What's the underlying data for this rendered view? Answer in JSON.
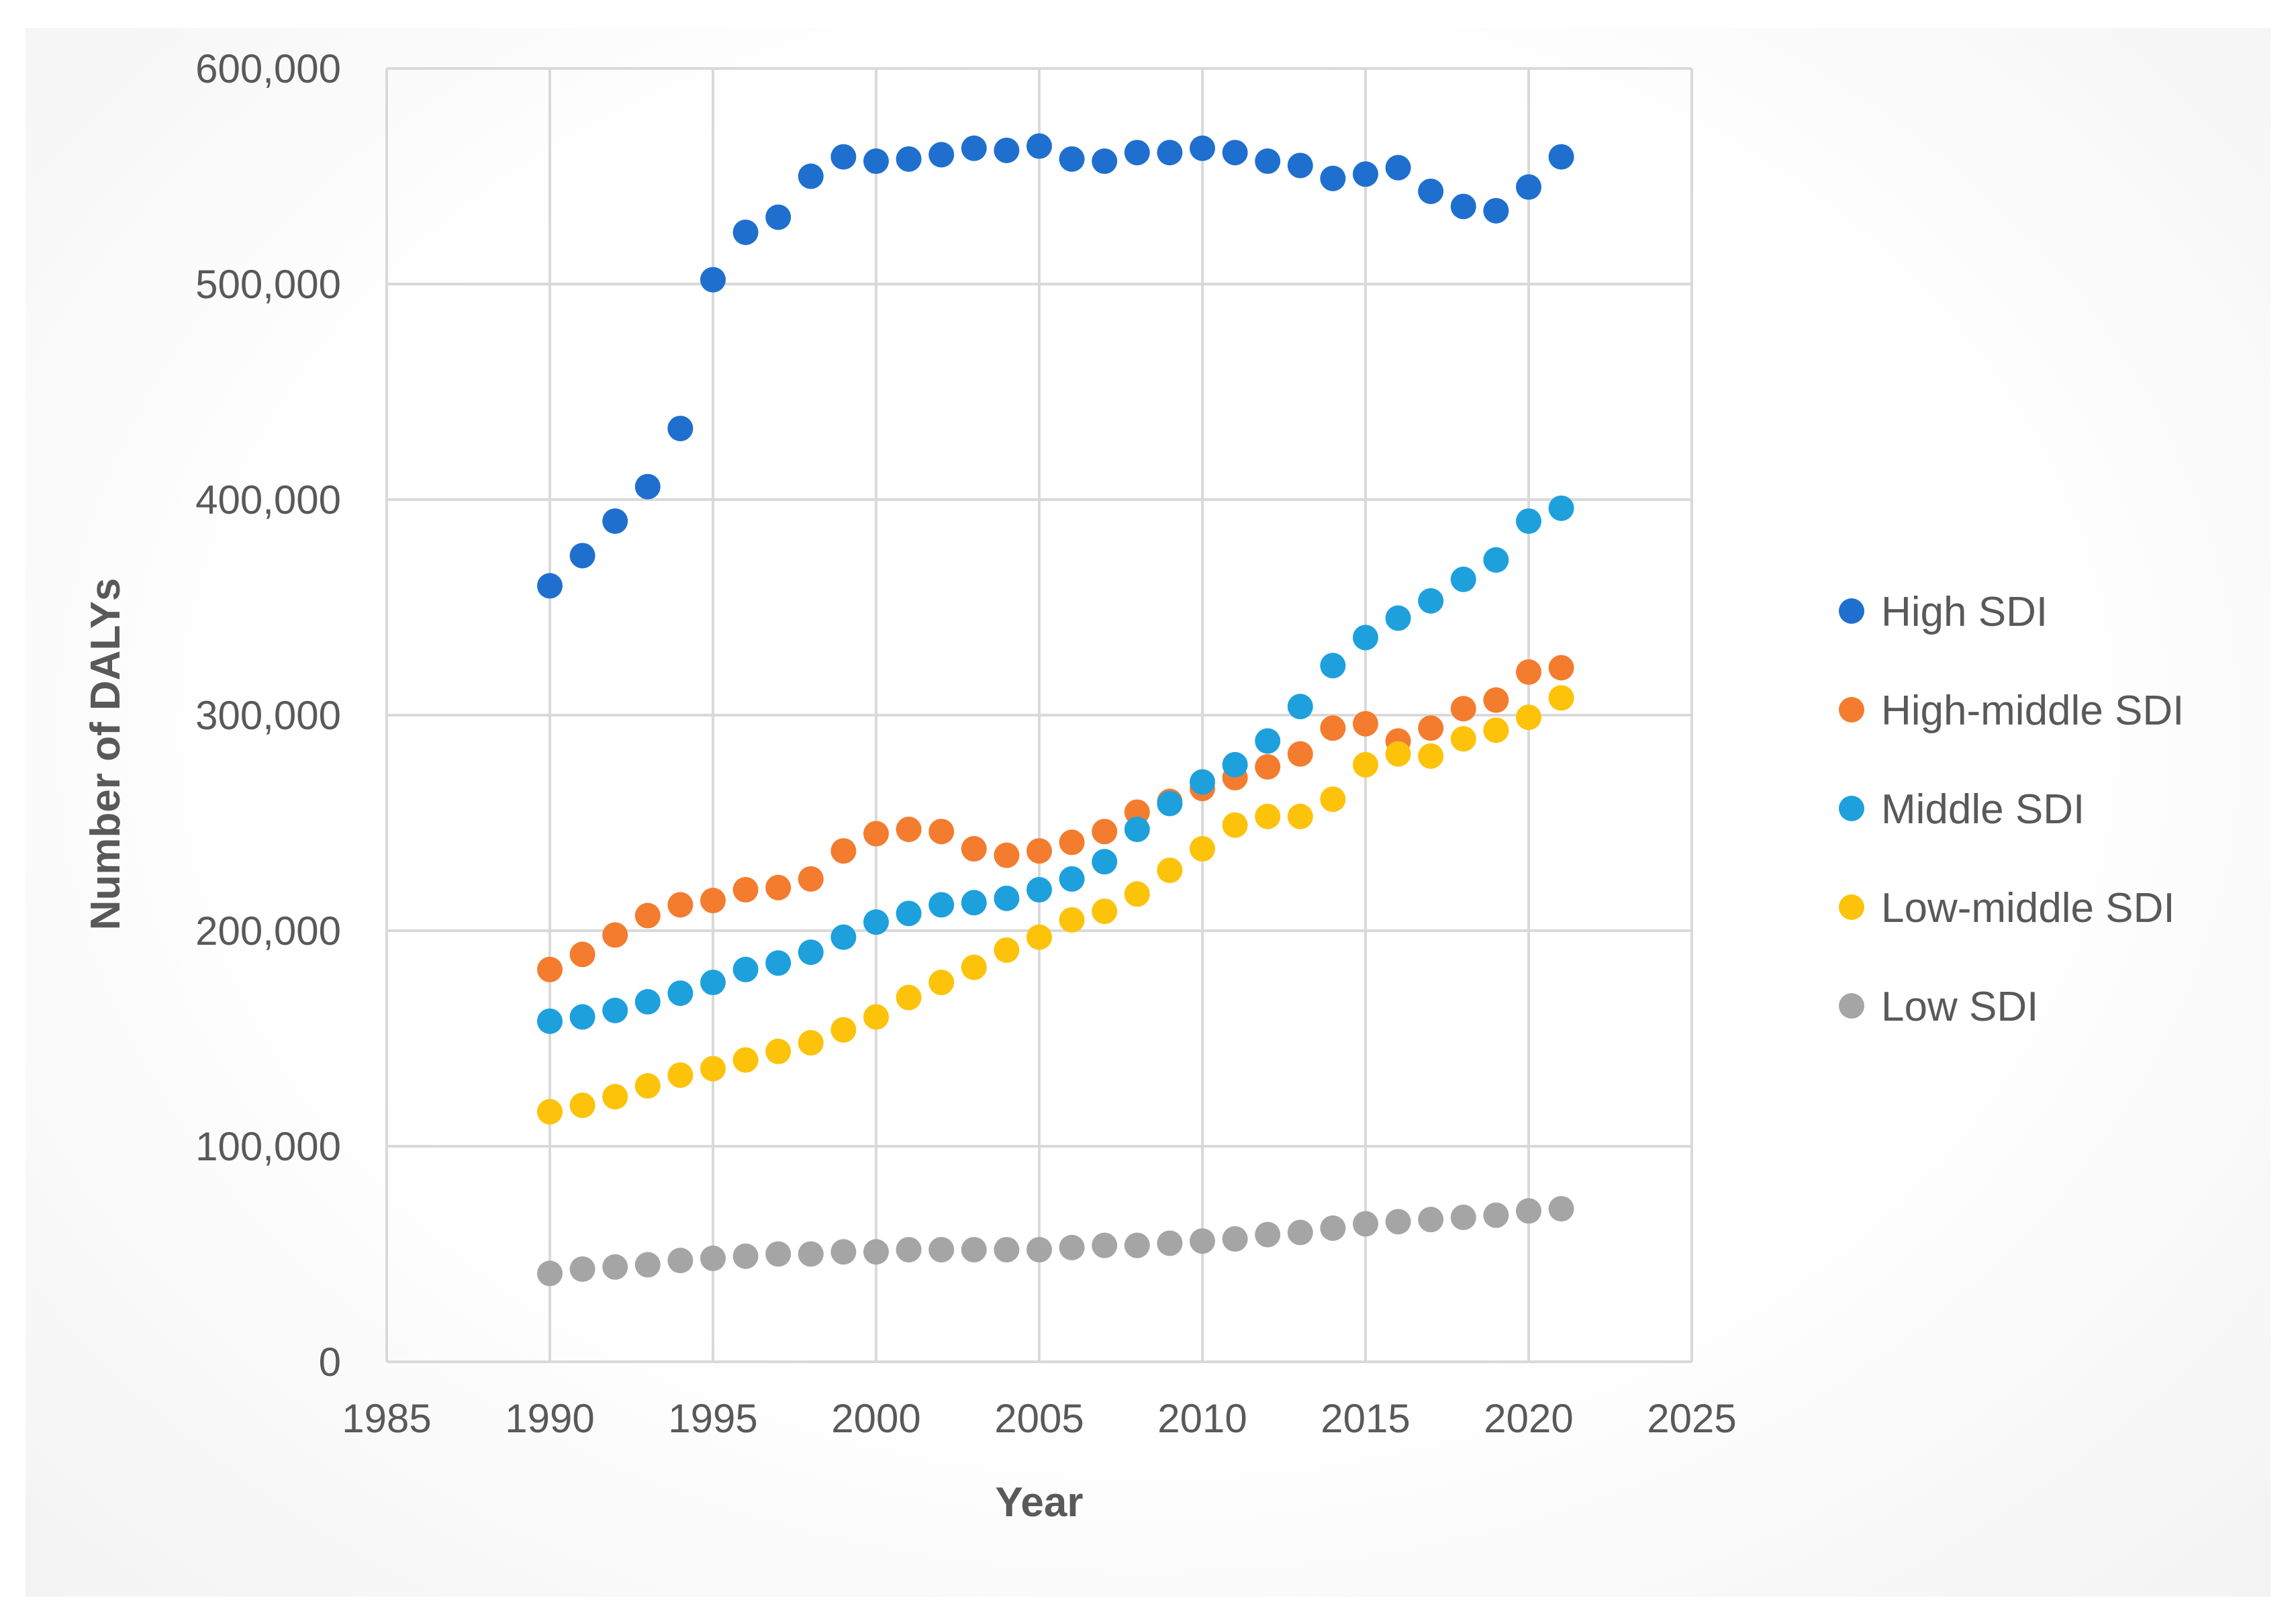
{
  "chart_data": {
    "type": "scatter",
    "title": "",
    "xlabel": "Year",
    "ylabel": "Number of DALYs",
    "xlim": [
      1985,
      2025
    ],
    "ylim": [
      0,
      600000
    ],
    "x_ticks": [
      "1985",
      "1990",
      "1995",
      "2000",
      "2005",
      "2010",
      "2015",
      "2020",
      "2025"
    ],
    "y_ticks": [
      "0",
      "100,000",
      "200,000",
      "300,000",
      "400,000",
      "500,000",
      "600,000"
    ],
    "grid": true,
    "legend_position": "right",
    "x": [
      1990,
      1991,
      1992,
      1993,
      1994,
      1995,
      1996,
      1997,
      1998,
      1999,
      2000,
      2001,
      2002,
      2003,
      2004,
      2005,
      2006,
      2007,
      2008,
      2009,
      2010,
      2011,
      2012,
      2013,
      2014,
      2015,
      2016,
      2017,
      2018,
      2019,
      2020,
      2021
    ],
    "series": [
      {
        "name": "High SDI",
        "color": "#1f6fcf",
        "values": [
          360000,
          374000,
          390000,
          406000,
          433000,
          502000,
          524000,
          531000,
          550000,
          559000,
          557000,
          558000,
          560000,
          563000,
          562000,
          564000,
          558000,
          557000,
          561000,
          561000,
          563000,
          561000,
          557000,
          555000,
          549000,
          551000,
          554000,
          543000,
          536000,
          534000,
          545000,
          559000
        ]
      },
      {
        "name": "High-middle SDI",
        "color": "#f37c2f",
        "values": [
          182000,
          189000,
          198000,
          207000,
          212000,
          214000,
          219000,
          220000,
          224000,
          237000,
          245000,
          247000,
          246000,
          238000,
          235000,
          237000,
          241000,
          246000,
          255000,
          260000,
          266000,
          271000,
          276000,
          282000,
          294000,
          296000,
          288000,
          294000,
          303000,
          307000,
          320000,
          322000
        ]
      },
      {
        "name": "Middle SDI",
        "color": "#1ea0dd",
        "values": [
          158000,
          160000,
          163000,
          167000,
          171000,
          176000,
          182000,
          185000,
          190000,
          197000,
          204000,
          208000,
          212000,
          213000,
          215000,
          219000,
          224000,
          232000,
          247000,
          259000,
          269000,
          277000,
          288000,
          304000,
          323000,
          336000,
          345000,
          353000,
          363000,
          372000,
          390000,
          396000
        ]
      },
      {
        "name": "Low-middle SDI",
        "color": "#fcc30a",
        "values": [
          116000,
          119000,
          123000,
          128000,
          133000,
          136000,
          140000,
          144000,
          148000,
          154000,
          160000,
          169000,
          176000,
          183000,
          191000,
          197000,
          205000,
          209000,
          217000,
          228000,
          238000,
          249000,
          253000,
          253000,
          261000,
          277000,
          282000,
          281000,
          289000,
          293000,
          299000,
          308000
        ]
      },
      {
        "name": "Low SDI",
        "color": "#a5a5a5",
        "values": [
          41000,
          43000,
          44000,
          45000,
          47000,
          48000,
          49000,
          50000,
          50000,
          51000,
          51000,
          52000,
          52000,
          52000,
          52000,
          52000,
          53000,
          54000,
          54000,
          55000,
          56000,
          57000,
          59000,
          60000,
          62000,
          64000,
          65000,
          66000,
          67000,
          68000,
          70000,
          71000
        ]
      }
    ]
  }
}
